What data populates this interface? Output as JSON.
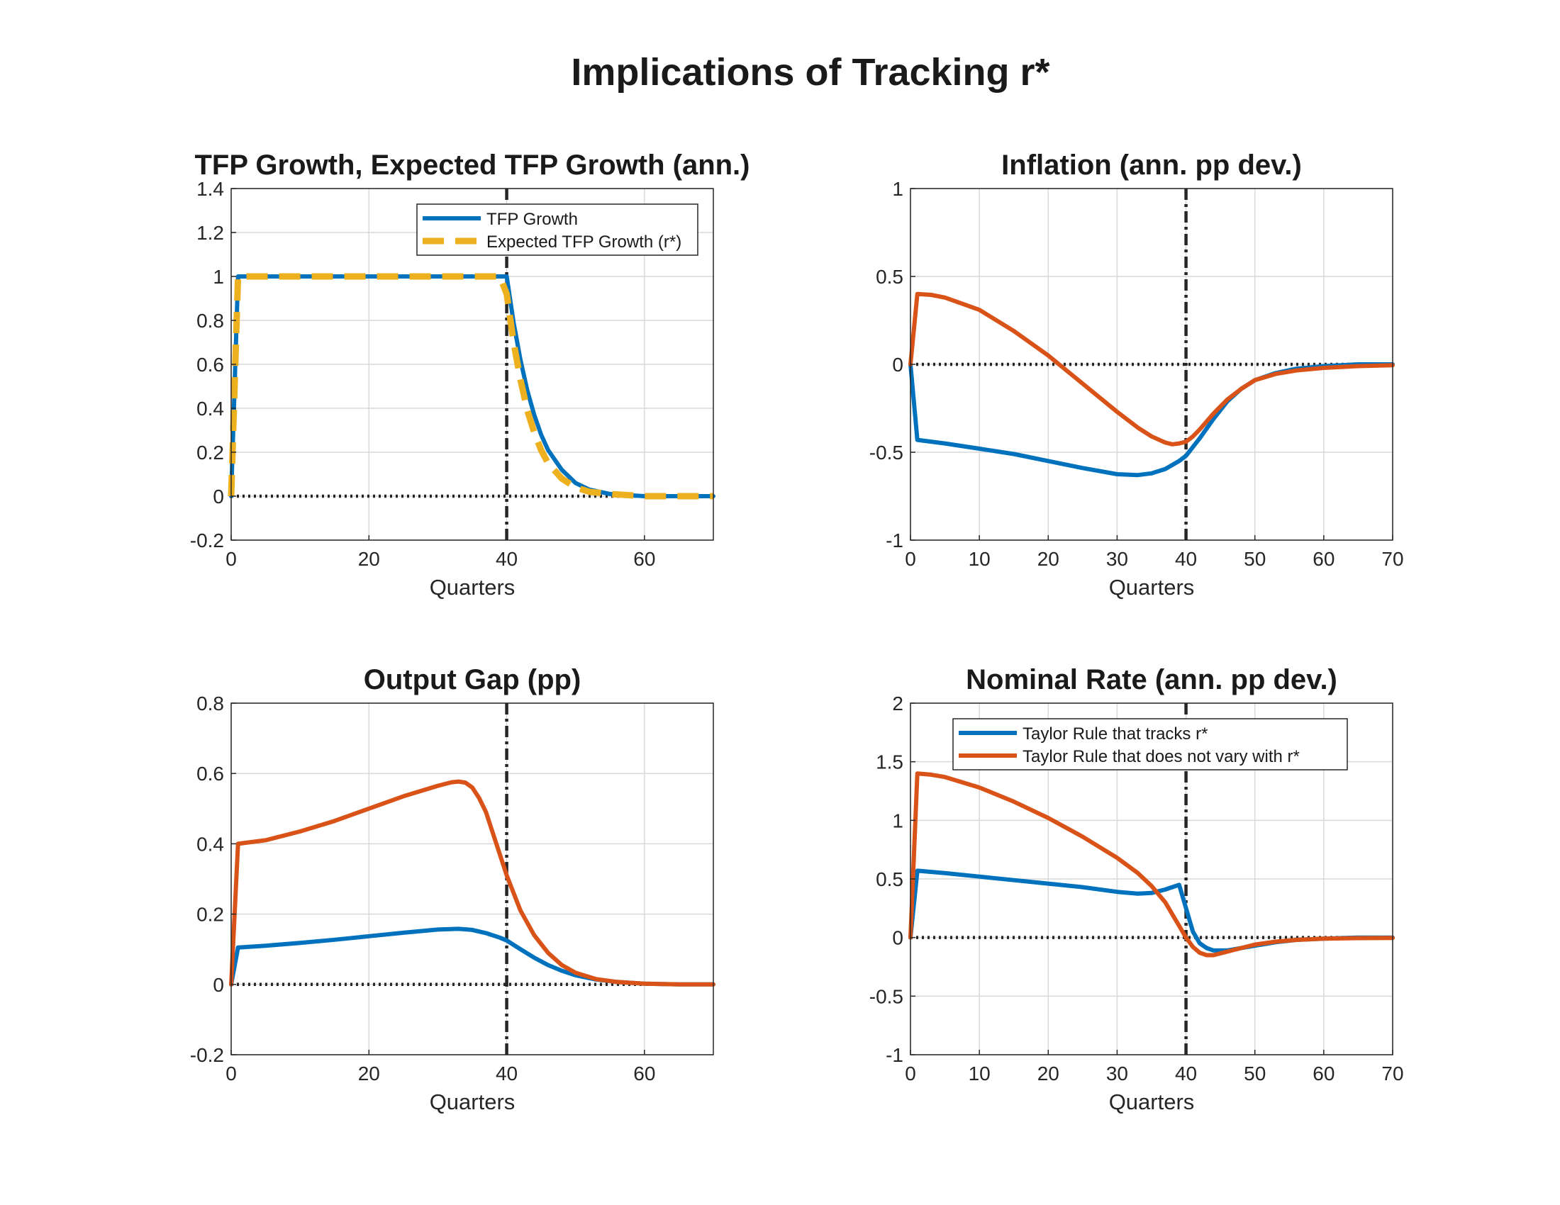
{
  "figure": {
    "title": "Implications of Tracking r*"
  },
  "colors": {
    "blue": "#0072BD",
    "orange": "#D95319",
    "yellow": "#EDB120",
    "reference": "#262626",
    "grid": "#d9d9d9",
    "axes": "#262626"
  },
  "chart_data": [
    {
      "type": "line",
      "title": "TFP Growth, Expected TFP Growth (ann.)",
      "xlabel": "Quarters",
      "ylabel": "",
      "xlim": [
        0,
        70
      ],
      "ylim": [
        -0.2,
        1.4
      ],
      "xticks": [
        0,
        20,
        40,
        60
      ],
      "yticks": [
        -0.2,
        0,
        0.2,
        0.4,
        0.6,
        0.8,
        1,
        1.2,
        1.4
      ],
      "grid": true,
      "legend": {
        "placement": "top-right"
      },
      "reference_lines": {
        "hline": 0,
        "vline": 40
      },
      "series": [
        {
          "name": "TFP Growth",
          "color": "#0072BD",
          "dash": "solid",
          "x": [
            0,
            1,
            2,
            5,
            10,
            20,
            30,
            39,
            40,
            41,
            42,
            43,
            44,
            45,
            46,
            48,
            50,
            52,
            55,
            60,
            65,
            70
          ],
          "y": [
            0,
            1,
            1,
            1,
            1,
            1,
            1,
            1,
            1,
            0.79,
            0.62,
            0.48,
            0.37,
            0.28,
            0.21,
            0.12,
            0.06,
            0.03,
            0.01,
            0,
            0,
            0
          ]
        },
        {
          "name": "Expected TFP Growth (r*)",
          "color": "#EDB120",
          "dash": "dashed",
          "x": [
            0,
            1,
            2,
            5,
            10,
            20,
            30,
            39,
            40,
            41,
            42,
            43,
            44,
            45,
            46,
            48,
            50,
            52,
            55,
            60,
            65,
            70
          ],
          "y": [
            0,
            1,
            1,
            1,
            1,
            1,
            1,
            1,
            0.92,
            0.7,
            0.53,
            0.39,
            0.29,
            0.21,
            0.15,
            0.08,
            0.04,
            0.02,
            0.01,
            0,
            0,
            0
          ]
        }
      ]
    },
    {
      "type": "line",
      "title": "Inflation (ann. pp dev.)",
      "xlabel": "Quarters",
      "ylabel": "",
      "xlim": [
        0,
        70
      ],
      "ylim": [
        -1,
        1
      ],
      "xticks": [
        0,
        10,
        20,
        30,
        40,
        50,
        60,
        70
      ],
      "yticks": [
        -1,
        -0.5,
        0,
        0.5,
        1
      ],
      "grid": true,
      "reference_lines": {
        "hline": 0,
        "vline": 40
      },
      "series": [
        {
          "name": "Taylor Rule that tracks r*",
          "color": "#0072BD",
          "x": [
            0,
            1,
            5,
            10,
            15,
            20,
            25,
            30,
            33,
            35,
            37,
            39,
            40,
            42,
            44,
            46,
            48,
            50,
            53,
            56,
            60,
            65,
            70
          ],
          "y": [
            0,
            -0.43,
            -0.45,
            -0.48,
            -0.51,
            -0.55,
            -0.59,
            -0.625,
            -0.63,
            -0.62,
            -0.595,
            -0.55,
            -0.52,
            -0.42,
            -0.31,
            -0.21,
            -0.14,
            -0.09,
            -0.05,
            -0.025,
            -0.01,
            0,
            0
          ]
        },
        {
          "name": "Taylor Rule that does not vary with r*",
          "color": "#D95319",
          "x": [
            0,
            1,
            3,
            5,
            10,
            15,
            20,
            25,
            30,
            33,
            35,
            37,
            38,
            39,
            40,
            41,
            42,
            44,
            46,
            48,
            50,
            53,
            56,
            60,
            65,
            70
          ],
          "y": [
            0,
            0.4,
            0.395,
            0.38,
            0.31,
            0.19,
            0.05,
            -0.11,
            -0.27,
            -0.36,
            -0.41,
            -0.445,
            -0.455,
            -0.45,
            -0.44,
            -0.41,
            -0.37,
            -0.28,
            -0.2,
            -0.14,
            -0.09,
            -0.055,
            -0.035,
            -0.02,
            -0.01,
            -0.005
          ]
        }
      ]
    },
    {
      "type": "line",
      "title": "Output Gap (pp)",
      "xlabel": "Quarters",
      "ylabel": "",
      "xlim": [
        0,
        70
      ],
      "ylim": [
        -0.2,
        0.8
      ],
      "xticks": [
        0,
        20,
        40,
        60
      ],
      "yticks": [
        -0.2,
        0,
        0.2,
        0.4,
        0.6,
        0.8
      ],
      "grid": true,
      "reference_lines": {
        "hline": 0,
        "vline": 40
      },
      "series": [
        {
          "name": "Taylor Rule that tracks r*",
          "color": "#0072BD",
          "x": [
            0,
            1,
            5,
            10,
            15,
            20,
            25,
            30,
            33,
            35,
            37,
            39,
            40,
            42,
            44,
            46,
            48,
            50,
            53,
            56,
            60,
            65,
            70
          ],
          "y": [
            0,
            0.105,
            0.11,
            0.118,
            0.127,
            0.137,
            0.147,
            0.156,
            0.158,
            0.155,
            0.146,
            0.133,
            0.125,
            0.1,
            0.076,
            0.055,
            0.039,
            0.026,
            0.014,
            0.007,
            0.002,
            0,
            0
          ]
        },
        {
          "name": "Taylor Rule that does not vary with r*",
          "color": "#D95319",
          "x": [
            0,
            1,
            3,
            5,
            10,
            15,
            20,
            25,
            30,
            32,
            33,
            34,
            35,
            36,
            37,
            38,
            39,
            40,
            41,
            42,
            44,
            46,
            48,
            50,
            53,
            56,
            60,
            65,
            70
          ],
          "y": [
            0,
            0.4,
            0.405,
            0.41,
            0.435,
            0.465,
            0.5,
            0.535,
            0.565,
            0.575,
            0.577,
            0.574,
            0.56,
            0.53,
            0.49,
            0.43,
            0.37,
            0.31,
            0.26,
            0.21,
            0.14,
            0.09,
            0.055,
            0.033,
            0.015,
            0.007,
            0.002,
            0,
            0
          ]
        }
      ]
    },
    {
      "type": "line",
      "title": "Nominal Rate (ann. pp dev.)",
      "xlabel": "Quarters",
      "ylabel": "",
      "xlim": [
        0,
        70
      ],
      "ylim": [
        -1,
        2
      ],
      "xticks": [
        0,
        10,
        20,
        30,
        40,
        50,
        60,
        70
      ],
      "yticks": [
        -1,
        -0.5,
        0,
        0.5,
        1,
        1.5,
        2
      ],
      "grid": true,
      "legend": {
        "placement": "top-left"
      },
      "reference_lines": {
        "hline": 0,
        "vline": 40
      },
      "series": [
        {
          "name": "Taylor Rule that tracks r*",
          "color": "#0072BD",
          "x": [
            0,
            1,
            5,
            10,
            15,
            20,
            25,
            30,
            33,
            35,
            37,
            38,
            39,
            40,
            41,
            42,
            43,
            44,
            46,
            48,
            50,
            53,
            56,
            60,
            65,
            70
          ],
          "y": [
            0,
            0.57,
            0.55,
            0.52,
            0.49,
            0.46,
            0.43,
            0.39,
            0.375,
            0.38,
            0.41,
            0.43,
            0.45,
            0.25,
            0.05,
            -0.05,
            -0.09,
            -0.11,
            -0.11,
            -0.09,
            -0.07,
            -0.04,
            -0.02,
            -0.01,
            0,
            0
          ]
        },
        {
          "name": "Taylor Rule that does not vary with r*",
          "color": "#D95319",
          "x": [
            0,
            1,
            3,
            5,
            10,
            15,
            20,
            25,
            30,
            33,
            35,
            37,
            38,
            39,
            40,
            41,
            42,
            43,
            44,
            46,
            48,
            50,
            53,
            56,
            60,
            65,
            70
          ],
          "y": [
            0,
            1.4,
            1.39,
            1.37,
            1.28,
            1.16,
            1.02,
            0.86,
            0.68,
            0.55,
            0.44,
            0.3,
            0.2,
            0.1,
            0.0,
            -0.08,
            -0.13,
            -0.15,
            -0.15,
            -0.12,
            -0.09,
            -0.06,
            -0.035,
            -0.02,
            -0.01,
            -0.005,
            -0.003
          ]
        }
      ]
    }
  ]
}
